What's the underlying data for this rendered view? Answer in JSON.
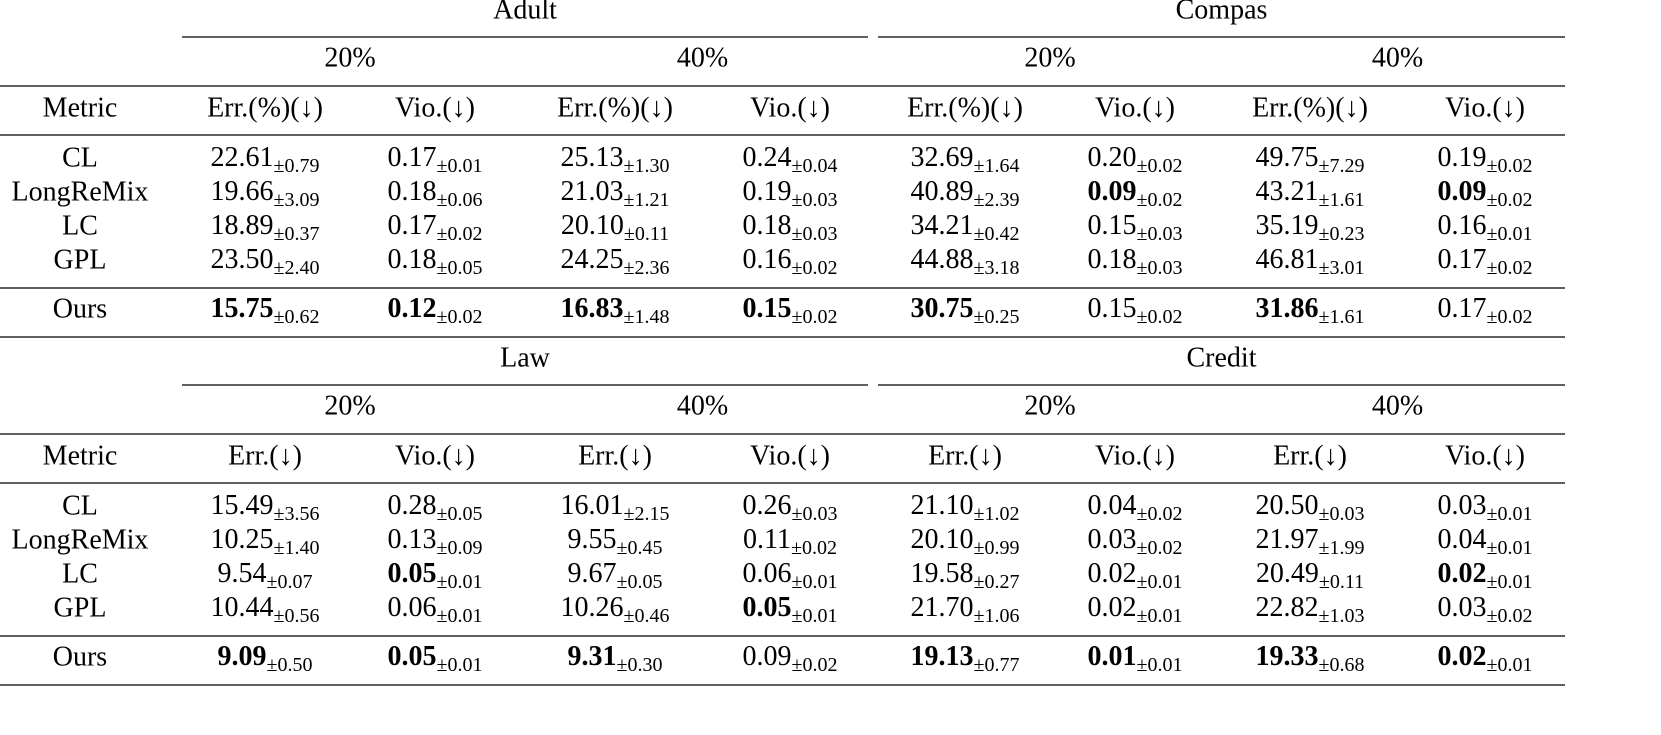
{
  "blocks": [
    {
      "datasets": [
        {
          "name": "Adult",
          "rates": [
            "20%",
            "40%"
          ]
        },
        {
          "name": "Compas",
          "rates": [
            "20%",
            "40%"
          ]
        }
      ],
      "metric_label": "Metric",
      "columns": [
        "Err.(%)(↓)",
        "Vio.(↓)"
      ],
      "rows": [
        {
          "method": "CL",
          "cells": [
            [
              "22.61",
              "±0.79"
            ],
            [
              "0.17",
              "±0.01"
            ],
            [
              "25.13",
              "±1.30"
            ],
            [
              "0.24",
              "±0.04"
            ],
            [
              "32.69",
              "±1.64"
            ],
            [
              "0.20",
              "±0.02"
            ],
            [
              "49.75",
              "±7.29"
            ],
            [
              "0.19",
              "±0.02"
            ]
          ],
          "bold": []
        },
        {
          "method": "LongReMix",
          "cells": [
            [
              "19.66",
              "±3.09"
            ],
            [
              "0.18",
              "±0.06"
            ],
            [
              "21.03",
              "±1.21"
            ],
            [
              "0.19",
              "±0.03"
            ],
            [
              "40.89",
              "±2.39"
            ],
            [
              "0.09",
              "±0.02"
            ],
            [
              "43.21",
              "±1.61"
            ],
            [
              "0.09",
              "±0.02"
            ]
          ],
          "bold": [
            5,
            7
          ]
        },
        {
          "method": "LC",
          "cells": [
            [
              "18.89",
              "±0.37"
            ],
            [
              "0.17",
              "±0.02"
            ],
            [
              "20.10",
              "±0.11"
            ],
            [
              "0.18",
              "±0.03"
            ],
            [
              "34.21",
              "±0.42"
            ],
            [
              "0.15",
              "±0.03"
            ],
            [
              "35.19",
              "±0.23"
            ],
            [
              "0.16",
              "±0.01"
            ]
          ],
          "bold": []
        },
        {
          "method": "GPL",
          "cells": [
            [
              "23.50",
              "±2.40"
            ],
            [
              "0.18",
              "±0.05"
            ],
            [
              "24.25",
              "±2.36"
            ],
            [
              "0.16",
              "±0.02"
            ],
            [
              "44.88",
              "±3.18"
            ],
            [
              "0.18",
              "±0.03"
            ],
            [
              "46.81",
              "±3.01"
            ],
            [
              "0.17",
              "±0.02"
            ]
          ],
          "bold": []
        },
        {
          "method": "Ours",
          "cells": [
            [
              "15.75",
              "±0.62"
            ],
            [
              "0.12",
              "±0.02"
            ],
            [
              "16.83",
              "±1.48"
            ],
            [
              "0.15",
              "±0.02"
            ],
            [
              "30.75",
              "±0.25"
            ],
            [
              "0.15",
              "±0.02"
            ],
            [
              "31.86",
              "±1.61"
            ],
            [
              "0.17",
              "±0.02"
            ]
          ],
          "bold": [
            0,
            1,
            2,
            3,
            4,
            6
          ]
        }
      ]
    },
    {
      "datasets": [
        {
          "name": "Law",
          "rates": [
            "20%",
            "40%"
          ]
        },
        {
          "name": "Credit",
          "rates": [
            "20%",
            "40%"
          ]
        }
      ],
      "metric_label": "Metric",
      "columns": [
        "Err.(↓)",
        "Vio.(↓)"
      ],
      "rows": [
        {
          "method": "CL",
          "cells": [
            [
              "15.49",
              "±3.56"
            ],
            [
              "0.28",
              "±0.05"
            ],
            [
              "16.01",
              "±2.15"
            ],
            [
              "0.26",
              "±0.03"
            ],
            [
              "21.10",
              "±1.02"
            ],
            [
              "0.04",
              "±0.02"
            ],
            [
              "20.50",
              "±0.03"
            ],
            [
              "0.03",
              "±0.01"
            ]
          ],
          "bold": []
        },
        {
          "method": "LongReMix",
          "cells": [
            [
              "10.25",
              "±1.40"
            ],
            [
              "0.13",
              "±0.09"
            ],
            [
              "9.55",
              "±0.45"
            ],
            [
              "0.11",
              "±0.02"
            ],
            [
              "20.10",
              "±0.99"
            ],
            [
              "0.03",
              "±0.02"
            ],
            [
              "21.97",
              "±1.99"
            ],
            [
              "0.04",
              "±0.01"
            ]
          ],
          "bold": []
        },
        {
          "method": "LC",
          "cells": [
            [
              "9.54",
              "±0.07"
            ],
            [
              "0.05",
              "±0.01"
            ],
            [
              "9.67",
              "±0.05"
            ],
            [
              "0.06",
              "±0.01"
            ],
            [
              "19.58",
              "±0.27"
            ],
            [
              "0.02",
              "±0.01"
            ],
            [
              "20.49",
              "±0.11"
            ],
            [
              "0.02",
              "±0.01"
            ]
          ],
          "bold": [
            1,
            7
          ]
        },
        {
          "method": "GPL",
          "cells": [
            [
              "10.44",
              "±0.56"
            ],
            [
              "0.06",
              "±0.01"
            ],
            [
              "10.26",
              "±0.46"
            ],
            [
              "0.05",
              "±0.01"
            ],
            [
              "21.70",
              "±1.06"
            ],
            [
              "0.02",
              "±0.01"
            ],
            [
              "22.82",
              "±1.03"
            ],
            [
              "0.03",
              "±0.02"
            ]
          ],
          "bold": [
            3
          ]
        },
        {
          "method": "Ours",
          "cells": [
            [
              "9.09",
              "±0.50"
            ],
            [
              "0.05",
              "±0.01"
            ],
            [
              "9.31",
              "±0.30"
            ],
            [
              "0.09",
              "±0.02"
            ],
            [
              "19.13",
              "±0.77"
            ],
            [
              "0.01",
              "±0.01"
            ],
            [
              "19.33",
              "±0.68"
            ],
            [
              "0.02",
              "±0.01"
            ]
          ],
          "bold": [
            0,
            1,
            2,
            4,
            5,
            6,
            7
          ]
        }
      ]
    }
  ]
}
